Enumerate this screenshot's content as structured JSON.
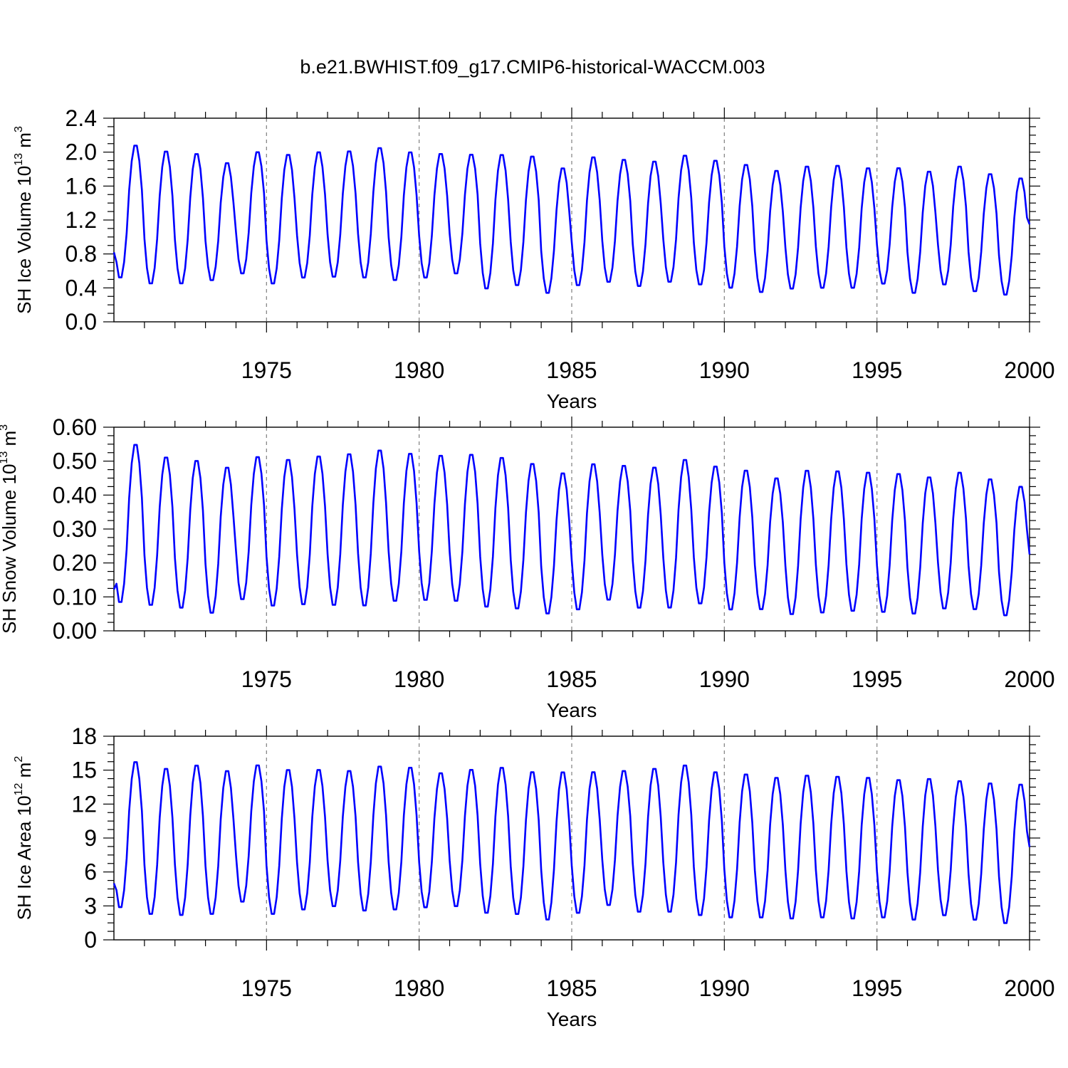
{
  "chart_data": [
    {
      "type": "line",
      "title": "b.e21.BWHIST.f09_g17.CMIP6-historical-WACCM.003",
      "xlabel": "Years",
      "ylabel": {
        "base": "SH Ice Volume 10",
        "exp": "13",
        "unit": " m",
        "unit_exp": "3"
      },
      "xlim": [
        1970.0,
        2000.0
      ],
      "ylim": [
        0.0,
        2.4
      ],
      "xticks": [
        1975,
        1980,
        1985,
        1990,
        1995,
        2000
      ],
      "xtick_labels": [
        "1975",
        "1980",
        "1985",
        "1990",
        "1995",
        "2000"
      ],
      "yticks": [
        0.0,
        0.4,
        0.8,
        1.2,
        1.6,
        2.0,
        2.4
      ],
      "ytick_labels": [
        "0.0",
        "0.4",
        "0.8",
        "1.2",
        "1.6",
        "2.0",
        "2.4"
      ],
      "grid": "vertical dashed at major x ticks",
      "series": [
        {
          "color": "#0000ff",
          "data_interval": "monthly",
          "annual_minima": [
            0.5,
            0.43,
            0.43,
            0.47,
            0.55,
            0.43,
            0.5,
            0.51,
            0.5,
            0.47,
            0.5,
            0.55,
            0.37,
            0.41,
            0.32,
            0.41,
            0.45,
            0.4,
            0.45,
            0.42,
            0.38,
            0.33,
            0.37,
            0.38,
            0.38,
            0.43,
            0.32,
            0.42,
            0.34,
            0.3
          ],
          "annual_maxima": [
            2.1,
            2.03,
            2.0,
            1.89,
            2.02,
            1.99,
            2.02,
            2.03,
            2.07,
            2.02,
            2.0,
            1.99,
            1.99,
            1.97,
            1.83,
            1.96,
            1.93,
            1.91,
            1.98,
            1.92,
            1.87,
            1.8,
            1.85,
            1.86,
            1.83,
            1.83,
            1.79,
            1.85,
            1.76,
            1.71
          ],
          "start_value": 0.82,
          "end_value": 1.15
        }
      ]
    },
    {
      "type": "line",
      "xlabel": "Years",
      "ylabel": {
        "base": "SH Snow Volume 10",
        "exp": "13",
        "unit": " m",
        "unit_exp": "3"
      },
      "xlim": [
        1970.0,
        2000.0
      ],
      "ylim": [
        0.0,
        0.6
      ],
      "xticks": [
        1975,
        1980,
        1985,
        1990,
        1995,
        2000
      ],
      "xtick_labels": [
        "1975",
        "1980",
        "1985",
        "1990",
        "1995",
        "2000"
      ],
      "yticks": [
        0.0,
        0.1,
        0.2,
        0.3,
        0.4,
        0.5,
        0.6
      ],
      "ytick_labels": [
        "0.00",
        "0.10",
        "0.20",
        "0.30",
        "0.40",
        "0.50",
        "0.60"
      ],
      "grid": "vertical dashed at major x ticks",
      "series": [
        {
          "color": "#0000ff",
          "data_interval": "monthly",
          "annual_minima": [
            0.078,
            0.07,
            0.062,
            0.047,
            0.087,
            0.068,
            0.072,
            0.07,
            0.068,
            0.082,
            0.085,
            0.082,
            0.065,
            0.06,
            0.045,
            0.057,
            0.086,
            0.062,
            0.062,
            0.075,
            0.057,
            0.058,
            0.043,
            0.048,
            0.053,
            0.05,
            0.045,
            0.06,
            0.058,
            0.04
          ],
          "annual_maxima": [
            0.555,
            0.517,
            0.507,
            0.487,
            0.518,
            0.51,
            0.52,
            0.527,
            0.538,
            0.528,
            0.522,
            0.525,
            0.516,
            0.498,
            0.47,
            0.497,
            0.492,
            0.487,
            0.51,
            0.49,
            0.478,
            0.455,
            0.478,
            0.476,
            0.472,
            0.468,
            0.458,
            0.472,
            0.452,
            0.43
          ],
          "start_value": 0.122,
          "end_value": 0.225
        }
      ]
    },
    {
      "type": "line",
      "xlabel": "Years",
      "ylabel": {
        "base": "SH Ice Area 10",
        "exp": "12",
        "unit": " m",
        "unit_exp": "2"
      },
      "xlim": [
        1970.0,
        2000.0
      ],
      "ylim": [
        0,
        18
      ],
      "xticks": [
        1975,
        1980,
        1985,
        1990,
        1995,
        2000
      ],
      "xtick_labels": [
        "1975",
        "1980",
        "1985",
        "1990",
        "1995",
        "2000"
      ],
      "yticks": [
        0,
        3,
        6,
        9,
        12,
        15,
        18
      ],
      "ytick_labels": [
        "0",
        "3",
        "6",
        "9",
        "12",
        "15",
        "18"
      ],
      "grid": "vertical dashed at major x ticks",
      "series": [
        {
          "color": "#0000ff",
          "data_interval": "monthly",
          "annual_minima": [
            2.7,
            2.1,
            2.0,
            2.1,
            3.2,
            2.1,
            2.5,
            2.8,
            2.4,
            2.5,
            2.7,
            2.8,
            2.2,
            2.1,
            1.6,
            2.2,
            2.9,
            2.3,
            2.3,
            2.0,
            1.8,
            1.8,
            1.7,
            1.8,
            1.7,
            1.8,
            1.6,
            2.0,
            1.6,
            1.3
          ],
          "annual_maxima": [
            15.9,
            15.3,
            15.6,
            15.1,
            15.6,
            15.2,
            15.2,
            15.1,
            15.5,
            15.4,
            14.9,
            15.2,
            15.4,
            15.0,
            15.0,
            15.0,
            15.1,
            15.3,
            15.6,
            15.0,
            14.8,
            14.5,
            14.7,
            14.6,
            14.5,
            14.3,
            14.4,
            14.2,
            14.0,
            13.9
          ],
          "start_value": 5.0,
          "end_value": 8.2
        }
      ]
    }
  ]
}
